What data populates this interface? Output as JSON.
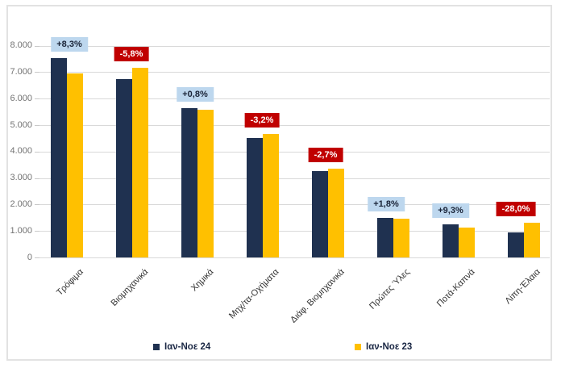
{
  "chart_data": {
    "type": "bar",
    "title": "",
    "categories": [
      "Τρόφιμα",
      "Βιομηχανικά",
      "Χημικά",
      "Μηχ/τα-Οχήματα",
      "Διάφ. Βιομηχανικά",
      "Πρώτες Ύλες",
      "Ποτά-Καπνά",
      "Λίπη-Έλαια"
    ],
    "series": [
      {
        "name": "Ιαν-Νοε 24",
        "color": "#1f3150",
        "values": [
          7520,
          6740,
          5630,
          4525,
          3265,
          1480,
          1245,
          950
        ]
      },
      {
        "name": "Ιαν-Νοε 23",
        "color": "#ffc000",
        "values": [
          6945,
          7155,
          5585,
          4675,
          3355,
          1455,
          1140,
          1320
        ]
      }
    ],
    "change_labels": [
      {
        "text": "+8,3%",
        "direction": "up"
      },
      {
        "text": "-5,8%",
        "direction": "down"
      },
      {
        "text": "+0,8%",
        "direction": "up"
      },
      {
        "text": "-3,2%",
        "direction": "down"
      },
      {
        "text": "-2,7%",
        "direction": "down"
      },
      {
        "text": "+1,8%",
        "direction": "up"
      },
      {
        "text": "+9,3%",
        "direction": "up"
      },
      {
        "text": "-28,0%",
        "direction": "down"
      }
    ],
    "y_axis": {
      "min": 0,
      "max": 8000,
      "step": 1000,
      "tick_labels": [
        "0",
        "1.000",
        "2.000",
        "3.000",
        "4.000",
        "5.000",
        "6.000",
        "7.000",
        "8.000"
      ]
    },
    "grid": true,
    "legend_position": "bottom"
  },
  "colors": {
    "up_badge_bg": "#bdd7ee",
    "up_badge_text": "#1a2438",
    "down_badge_bg": "#c00000",
    "down_badge_text": "#ffffff",
    "gridline": "#d9d9d9",
    "axis_text": "#737373"
  }
}
